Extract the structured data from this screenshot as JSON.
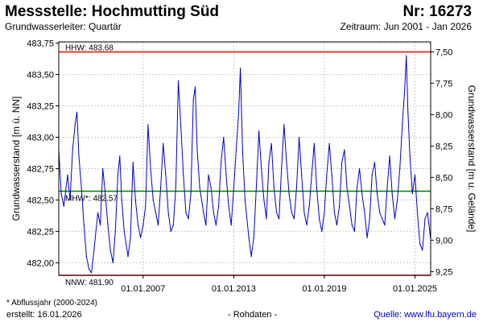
{
  "header": {
    "title": "Messstelle: Hochmutting Süd",
    "number": "Nr: 16273",
    "aquifer": "Grundwasserleiter: Quartär",
    "period": "Zeitraum: Jun 2001 - Jan 2026"
  },
  "footer": {
    "note": "* Abflussjahr (2000-2024)",
    "created": "erstellt:  16.01.2026",
    "raw": "- Rohdaten -",
    "source": "Quelle: www.lfu.bayern.de"
  },
  "colors": {
    "series": "#0000cc",
    "hhw": "#ff0000",
    "nnw": "#ff0000",
    "mhw": "#008000",
    "grid": "#cccccc",
    "source_link": "#0000cc"
  },
  "chart_data": {
    "type": "line",
    "ylabel_left": "Grundwasserstand [m ü. NN]",
    "ylabel_right": "Grundwasserstand [m u. Gelände]",
    "ylim": [
      481.9,
      483.76
    ],
    "yticks": [
      482.0,
      482.25,
      482.5,
      482.75,
      483.0,
      483.25,
      483.5,
      483.75
    ],
    "ytick_labels": [
      "482,00",
      "482,25",
      "482,50",
      "482,75",
      "483,00",
      "483,25",
      "483,50",
      "483,75"
    ],
    "right_ticks": [
      7.5,
      7.75,
      8.0,
      8.25,
      8.5,
      8.75,
      9.0,
      9.25
    ],
    "right_tick_labels": [
      "7,50",
      "7,75",
      "8,00",
      "8,25",
      "8,50",
      "8,75",
      "9,00",
      "9,25"
    ],
    "right_offset": 491.18,
    "xlim": [
      "2001-06-01",
      "2026-01-16"
    ],
    "xticks": [
      "2007-01-01",
      "2013-01-01",
      "2019-01-01",
      "2025-01-01"
    ],
    "xtick_labels": [
      "01.01.2007",
      "01.01.2013",
      "01.01.2019",
      "01.01.2025"
    ],
    "grid": true,
    "reference_lines": [
      {
        "label": "HHW: 483.68",
        "value": 483.68
      },
      {
        "label": "MHW*: 482.57",
        "value": 482.57
      },
      {
        "label": "NNW: 481.90",
        "value": 481.9
      }
    ],
    "series": [
      {
        "x": [
          "2001-06-01",
          "2001-08-01",
          "2001-10-01",
          "2002-01-01",
          "2002-03-01",
          "2002-05-01",
          "2002-07-01",
          "2002-08-15",
          "2002-10-01",
          "2002-12-01",
          "2003-02-01",
          "2003-04-01",
          "2003-06-01",
          "2003-08-01",
          "2003-10-01",
          "2004-01-01",
          "2004-03-01",
          "2004-05-01",
          "2004-07-01",
          "2004-09-01",
          "2004-11-01",
          "2005-01-01",
          "2005-03-01",
          "2005-05-01",
          "2005-06-15",
          "2005-08-01",
          "2005-10-01",
          "2006-01-01",
          "2006-03-01",
          "2006-05-01",
          "2006-07-01",
          "2006-09-01",
          "2006-11-01",
          "2007-01-01",
          "2007-03-01",
          "2007-05-01",
          "2007-07-01",
          "2007-09-01",
          "2007-11-01",
          "2008-01-01",
          "2008-03-01",
          "2008-05-01",
          "2008-07-01",
          "2008-09-01",
          "2008-11-01",
          "2009-01-01",
          "2009-03-01",
          "2009-05-01",
          "2009-07-01",
          "2009-09-01",
          "2009-11-01",
          "2010-01-01",
          "2010-03-01",
          "2010-05-01",
          "2010-06-15",
          "2010-08-01",
          "2010-10-01",
          "2011-01-01",
          "2011-03-01",
          "2011-05-01",
          "2011-07-01",
          "2011-09-01",
          "2011-11-01",
          "2012-01-01",
          "2012-03-01",
          "2012-05-01",
          "2012-07-01",
          "2012-09-01",
          "2012-11-01",
          "2013-01-01",
          "2013-03-01",
          "2013-05-01",
          "2013-06-10",
          "2013-08-01",
          "2013-10-01",
          "2014-01-01",
          "2014-03-01",
          "2014-05-01",
          "2014-07-01",
          "2014-09-01",
          "2014-11-01",
          "2015-01-01",
          "2015-03-01",
          "2015-05-01",
          "2015-07-01",
          "2015-09-01",
          "2015-11-01",
          "2016-01-01",
          "2016-03-01",
          "2016-05-01",
          "2016-07-01",
          "2016-09-01",
          "2016-11-01",
          "2017-01-01",
          "2017-03-01",
          "2017-05-01",
          "2017-07-01",
          "2017-09-01",
          "2017-11-01",
          "2018-01-01",
          "2018-03-01",
          "2018-05-01",
          "2018-07-01",
          "2018-09-01",
          "2018-11-01",
          "2019-01-01",
          "2019-03-01",
          "2019-05-01",
          "2019-07-01",
          "2019-09-01",
          "2019-11-01",
          "2020-01-01",
          "2020-03-01",
          "2020-05-01",
          "2020-07-01",
          "2020-09-01",
          "2020-11-01",
          "2021-01-01",
          "2021-03-01",
          "2021-05-01",
          "2021-07-01",
          "2021-09-01",
          "2021-11-01",
          "2022-01-01",
          "2022-03-01",
          "2022-05-01",
          "2022-07-01",
          "2022-09-01",
          "2022-11-01",
          "2023-01-01",
          "2023-03-01",
          "2023-05-01",
          "2023-07-01",
          "2023-09-01",
          "2023-11-01",
          "2024-01-01",
          "2024-03-01",
          "2024-05-01",
          "2024-06-05",
          "2024-07-15",
          "2024-09-01",
          "2024-11-01",
          "2025-01-01",
          "2025-03-01",
          "2025-05-01",
          "2025-07-01",
          "2025-09-01",
          "2025-11-01",
          "2026-01-10"
        ],
        "y": [
          482.9,
          482.55,
          482.45,
          482.7,
          482.5,
          482.9,
          483.1,
          483.2,
          482.85,
          482.6,
          482.3,
          482.05,
          481.95,
          481.92,
          482.1,
          482.4,
          482.3,
          482.75,
          482.55,
          482.3,
          482.1,
          482.0,
          482.25,
          482.7,
          482.85,
          482.5,
          482.25,
          482.05,
          482.2,
          482.8,
          482.5,
          482.3,
          482.2,
          482.3,
          482.45,
          483.1,
          482.75,
          482.5,
          482.4,
          482.3,
          482.6,
          482.95,
          482.7,
          482.4,
          482.25,
          482.3,
          482.6,
          483.45,
          483.1,
          482.7,
          482.4,
          482.35,
          482.55,
          483.3,
          483.4,
          482.9,
          482.6,
          482.4,
          482.3,
          482.7,
          482.6,
          482.4,
          482.3,
          482.45,
          482.8,
          483.0,
          482.7,
          482.45,
          482.3,
          482.6,
          482.9,
          483.2,
          483.55,
          482.9,
          482.5,
          482.2,
          482.05,
          482.2,
          482.6,
          483.05,
          482.75,
          482.5,
          482.35,
          482.8,
          482.95,
          482.6,
          482.4,
          482.35,
          482.75,
          483.1,
          482.8,
          482.55,
          482.4,
          482.35,
          482.6,
          483.0,
          482.7,
          482.4,
          482.3,
          482.45,
          482.7,
          482.95,
          482.6,
          482.35,
          482.25,
          482.4,
          482.7,
          482.95,
          482.7,
          482.4,
          482.3,
          482.45,
          482.8,
          482.9,
          482.6,
          482.45,
          482.3,
          482.25,
          482.6,
          482.75,
          482.55,
          482.4,
          482.2,
          482.35,
          482.7,
          482.8,
          482.55,
          482.4,
          482.35,
          482.3,
          482.6,
          482.85,
          482.55,
          482.35,
          482.5,
          482.75,
          483.1,
          483.4,
          483.65,
          483.2,
          482.85,
          482.55,
          482.7,
          482.4,
          482.15,
          482.1,
          482.35,
          482.4,
          482.2
        ]
      }
    ]
  }
}
